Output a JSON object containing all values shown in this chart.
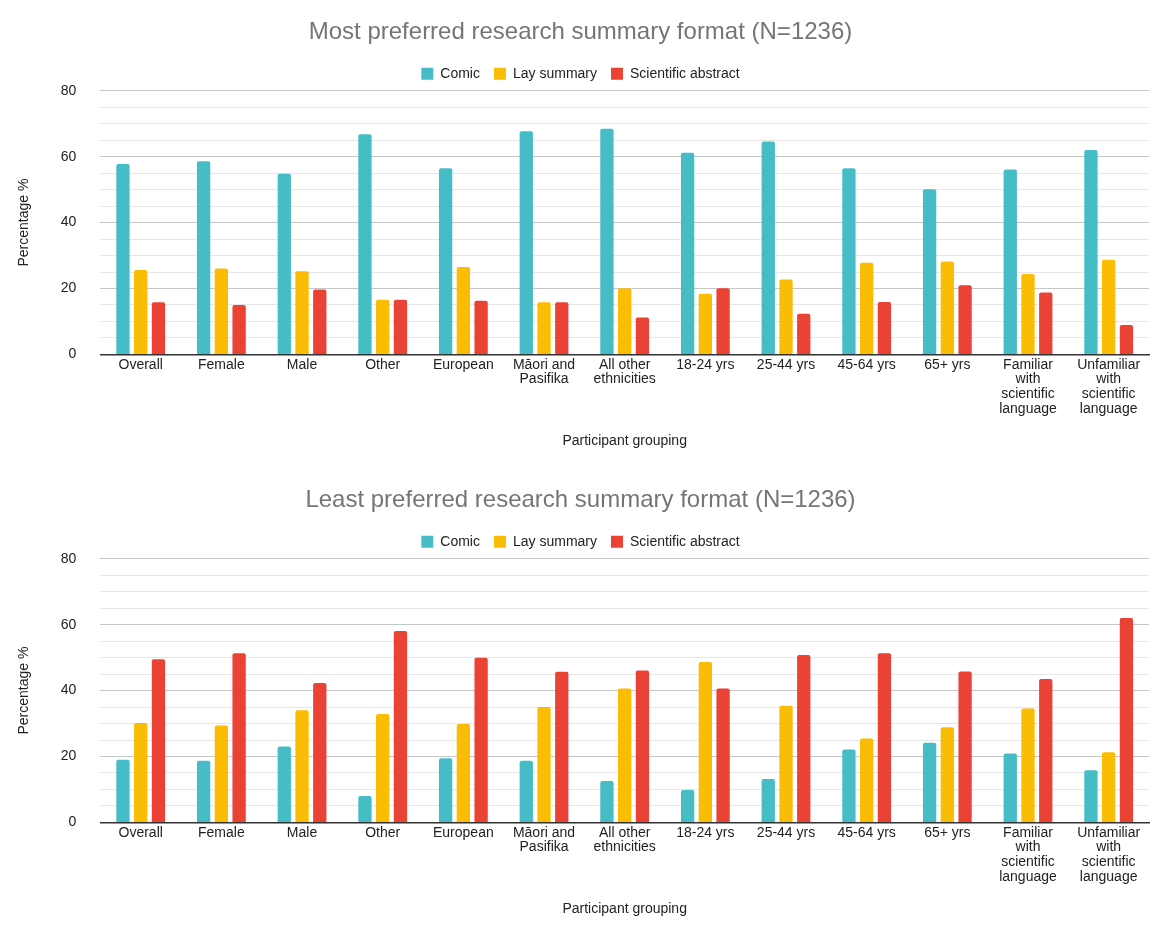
{
  "chart_data": [
    {
      "type": "bar",
      "title": "Most preferred research summary format (N=1236)",
      "xlabel": "Participant grouping",
      "ylabel": "Percentage %",
      "categories": [
        "Overall",
        "Female",
        "Male",
        "Other",
        "European",
        "Māori and Pasifika",
        "All other ethnicities",
        "18-24 yrs",
        "25-44 yrs",
        "45-64 yrs",
        "65+ yrs",
        "Familiar with scientific language",
        "Unfamiliar with scientific language"
      ],
      "series": [
        {
          "name": "Comic",
          "color": "#46bdc6",
          "values": [
            57.8,
            58.6,
            54.8,
            66.8,
            56.5,
            67.7,
            68.5,
            61.2,
            64.6,
            56.5,
            50.1,
            56.1,
            62.0
          ]
        },
        {
          "name": "Lay summary",
          "color": "#fbbc04",
          "values": [
            25.6,
            26.1,
            25.2,
            16.6,
            26.5,
            15.8,
            20.1,
            18.4,
            22.7,
            27.8,
            28.2,
            24.4,
            28.7
          ]
        },
        {
          "name": "Scientific abstract",
          "color": "#ea4335",
          "values": [
            15.8,
            15.0,
            19.7,
            16.6,
            16.3,
            15.8,
            11.2,
            20.1,
            12.3,
            15.9,
            21.0,
            18.8,
            8.9
          ]
        }
      ],
      "ylim": [
        0,
        80
      ],
      "yticks": [
        0,
        {
          "value": 5,
          "label": null
        },
        {
          "value": 10,
          "label": null
        },
        {
          "value": 15,
          "label": null
        },
        20,
        {
          "value": 25,
          "label": null
        },
        {
          "value": 30,
          "label": null
        },
        {
          "value": 35,
          "label": null
        },
        40,
        {
          "value": 45,
          "label": null
        },
        {
          "value": 50,
          "label": null
        },
        {
          "value": 55,
          "label": null
        },
        60,
        {
          "value": 65,
          "label": null
        },
        {
          "value": 70,
          "label": null
        },
        {
          "value": 75,
          "label": null
        },
        80
      ],
      "grid": "y",
      "legend": "top"
    },
    {
      "type": "bar",
      "title": "Least preferred research summary format (N=1236)",
      "xlabel": "Participant grouping",
      "ylabel": "Percentage %",
      "categories": [
        "Overall",
        "Female",
        "Male",
        "Other",
        "European",
        "Māori and Pasifika",
        "All other ethnicities",
        "18-24 yrs",
        "25-44 yrs",
        "45-64 yrs",
        "65+ yrs",
        "Familiar with scientific language",
        "Unfamiliar with scientific language"
      ],
      "series": [
        {
          "name": "Comic",
          "color": "#46bdc6",
          "values": [
            19.0,
            18.7,
            23.0,
            8.0,
            19.5,
            18.7,
            12.6,
            9.8,
            13.2,
            22.1,
            24.2,
            20.9,
            15.8
          ]
        },
        {
          "name": "Lay summary",
          "color": "#fbbc04",
          "values": [
            30.2,
            29.4,
            34.0,
            32.9,
            29.9,
            35.0,
            40.6,
            48.7,
            35.4,
            25.5,
            28.9,
            34.6,
            21.3
          ]
        },
        {
          "name": "Scientific abstract",
          "color": "#ea4335",
          "values": [
            49.5,
            51.3,
            42.3,
            58.1,
            50.0,
            45.7,
            46.1,
            40.6,
            50.8,
            51.3,
            45.8,
            43.5,
            62.0
          ]
        }
      ],
      "ylim": [
        0,
        80
      ],
      "yticks": [
        0,
        {
          "value": 5,
          "label": null
        },
        {
          "value": 10,
          "label": null
        },
        {
          "value": 15,
          "label": null
        },
        20,
        {
          "value": 25,
          "label": null
        },
        {
          "value": 30,
          "label": null
        },
        {
          "value": 35,
          "label": null
        },
        40,
        {
          "value": 45,
          "label": null
        },
        {
          "value": 50,
          "label": null
        },
        {
          "value": 55,
          "label": null
        },
        60,
        {
          "value": 65,
          "label": null
        },
        {
          "value": 70,
          "label": null
        },
        {
          "value": 75,
          "label": null
        },
        80
      ],
      "grid": "y",
      "legend": "top"
    }
  ]
}
